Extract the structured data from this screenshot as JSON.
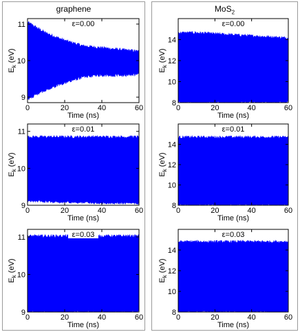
{
  "columns": [
    {
      "title": "graphene"
    },
    {
      "title_main": "MoS",
      "title_sub": "2"
    }
  ],
  "chart_data": [
    {
      "type": "line",
      "panel": "graphene-eps-0.00",
      "annotation": "ε=0.00",
      "xlabel": "Time (ns)",
      "ylabel_main": "E",
      "ylabel_sub": "k",
      "ylabel_unit": " (eV)",
      "xlim": [
        0,
        60
      ],
      "ylim": [
        8.85,
        11.15
      ],
      "xticks": [
        0,
        20,
        40,
        60
      ],
      "yticks": [
        9,
        10,
        11
      ],
      "series_color": "#0000ff",
      "mean": [
        10.0,
        10.0,
        9.95,
        9.93,
        9.9,
        9.9,
        9.88
      ],
      "upper": [
        11.05,
        10.75,
        10.55,
        10.4,
        10.35,
        10.3,
        10.25
      ],
      "lower": [
        8.95,
        9.2,
        9.4,
        9.55,
        9.6,
        9.6,
        9.62
      ]
    },
    {
      "type": "line",
      "panel": "mos2-eps-0.00",
      "annotation": "ε=0.00",
      "xlabel": "Time (ns)",
      "ylabel_main": "E",
      "ylabel_sub": "k",
      "ylabel_unit": " (eV)",
      "xlim": [
        0,
        60
      ],
      "ylim": [
        8.0,
        16.0
      ],
      "xticks": [
        0,
        20,
        40,
        60
      ],
      "yticks": [
        8,
        10,
        12,
        14
      ],
      "series_color": "#0000ff",
      "mean": [
        11.2,
        11.2,
        11.2,
        11.1,
        11.1,
        11.1,
        11.0
      ],
      "upper": [
        14.65,
        14.65,
        14.55,
        14.45,
        14.35,
        14.25,
        14.15
      ],
      "lower": [
        8.0,
        8.0,
        8.0,
        8.0,
        8.0,
        8.0,
        8.0
      ]
    },
    {
      "type": "line",
      "panel": "graphene-eps-0.01",
      "annotation": "ε=0.01",
      "xlabel": "Time (ns)",
      "ylabel_main": "E",
      "ylabel_sub": "k",
      "ylabel_unit": " (eV)",
      "xlim": [
        0,
        60
      ],
      "ylim": [
        9.0,
        11.2
      ],
      "xticks": [
        0,
        20,
        40,
        60
      ],
      "yticks": [
        9,
        10,
        11
      ],
      "series_color": "#0000ff",
      "mean": [
        9.9,
        9.9,
        9.9,
        9.9,
        9.9,
        9.9,
        9.9
      ],
      "upper": [
        10.85,
        10.85,
        10.85,
        10.85,
        10.85,
        10.85,
        10.85
      ],
      "lower": [
        9.12,
        9.1,
        9.08,
        9.08,
        9.06,
        9.06,
        9.06
      ]
    },
    {
      "type": "line",
      "panel": "mos2-eps-0.01",
      "annotation": "ε=0.01",
      "xlabel": "Time (ns)",
      "ylabel_main": "E",
      "ylabel_sub": "k",
      "ylabel_unit": " (eV)",
      "xlim": [
        0,
        60
      ],
      "ylim": [
        8.0,
        16.0
      ],
      "xticks": [
        0,
        20,
        40,
        60
      ],
      "yticks": [
        8,
        10,
        12,
        14
      ],
      "series_color": "#0000ff",
      "mean": [
        11.3,
        11.3,
        11.3,
        11.3,
        11.3,
        11.3,
        11.3
      ],
      "upper": [
        14.7,
        14.7,
        14.7,
        14.7,
        14.7,
        14.7,
        14.7
      ],
      "lower": [
        8.0,
        8.0,
        8.0,
        8.0,
        8.0,
        8.0,
        8.0
      ]
    },
    {
      "type": "line",
      "panel": "graphene-eps-0.03",
      "annotation": "ε=0.03",
      "xlabel": "Time (ns)",
      "ylabel_main": "E",
      "ylabel_sub": "k",
      "ylabel_unit": " (eV)",
      "xlim": [
        0,
        60
      ],
      "ylim": [
        9.0,
        11.2
      ],
      "xticks": [
        0,
        20,
        40,
        60
      ],
      "yticks": [
        9,
        10,
        11
      ],
      "series_color": "#0000ff",
      "mean": [
        10.0,
        10.0,
        10.0,
        10.0,
        10.0,
        10.0,
        10.0
      ],
      "upper": [
        11.02,
        11.02,
        11.02,
        11.02,
        11.02,
        11.02,
        11.02
      ],
      "lower": [
        9.0,
        9.0,
        9.0,
        9.0,
        9.0,
        9.0,
        9.0
      ]
    },
    {
      "type": "line",
      "panel": "mos2-eps-0.03",
      "annotation": "ε=0.03",
      "xlabel": "Time (ns)",
      "ylabel_main": "E",
      "ylabel_sub": "k",
      "ylabel_unit": " (eV)",
      "xlim": [
        0,
        60
      ],
      "ylim": [
        8.0,
        16.0
      ],
      "xticks": [
        0,
        20,
        40,
        60
      ],
      "yticks": [
        8,
        10,
        12,
        14
      ],
      "series_color": "#0000ff",
      "mean": [
        11.3,
        11.3,
        11.3,
        11.3,
        11.3,
        11.3,
        11.3
      ],
      "upper": [
        14.8,
        14.8,
        14.8,
        14.8,
        14.8,
        14.8,
        14.8
      ],
      "lower": [
        8.0,
        8.0,
        8.0,
        8.0,
        8.0,
        8.0,
        8.0
      ]
    }
  ]
}
